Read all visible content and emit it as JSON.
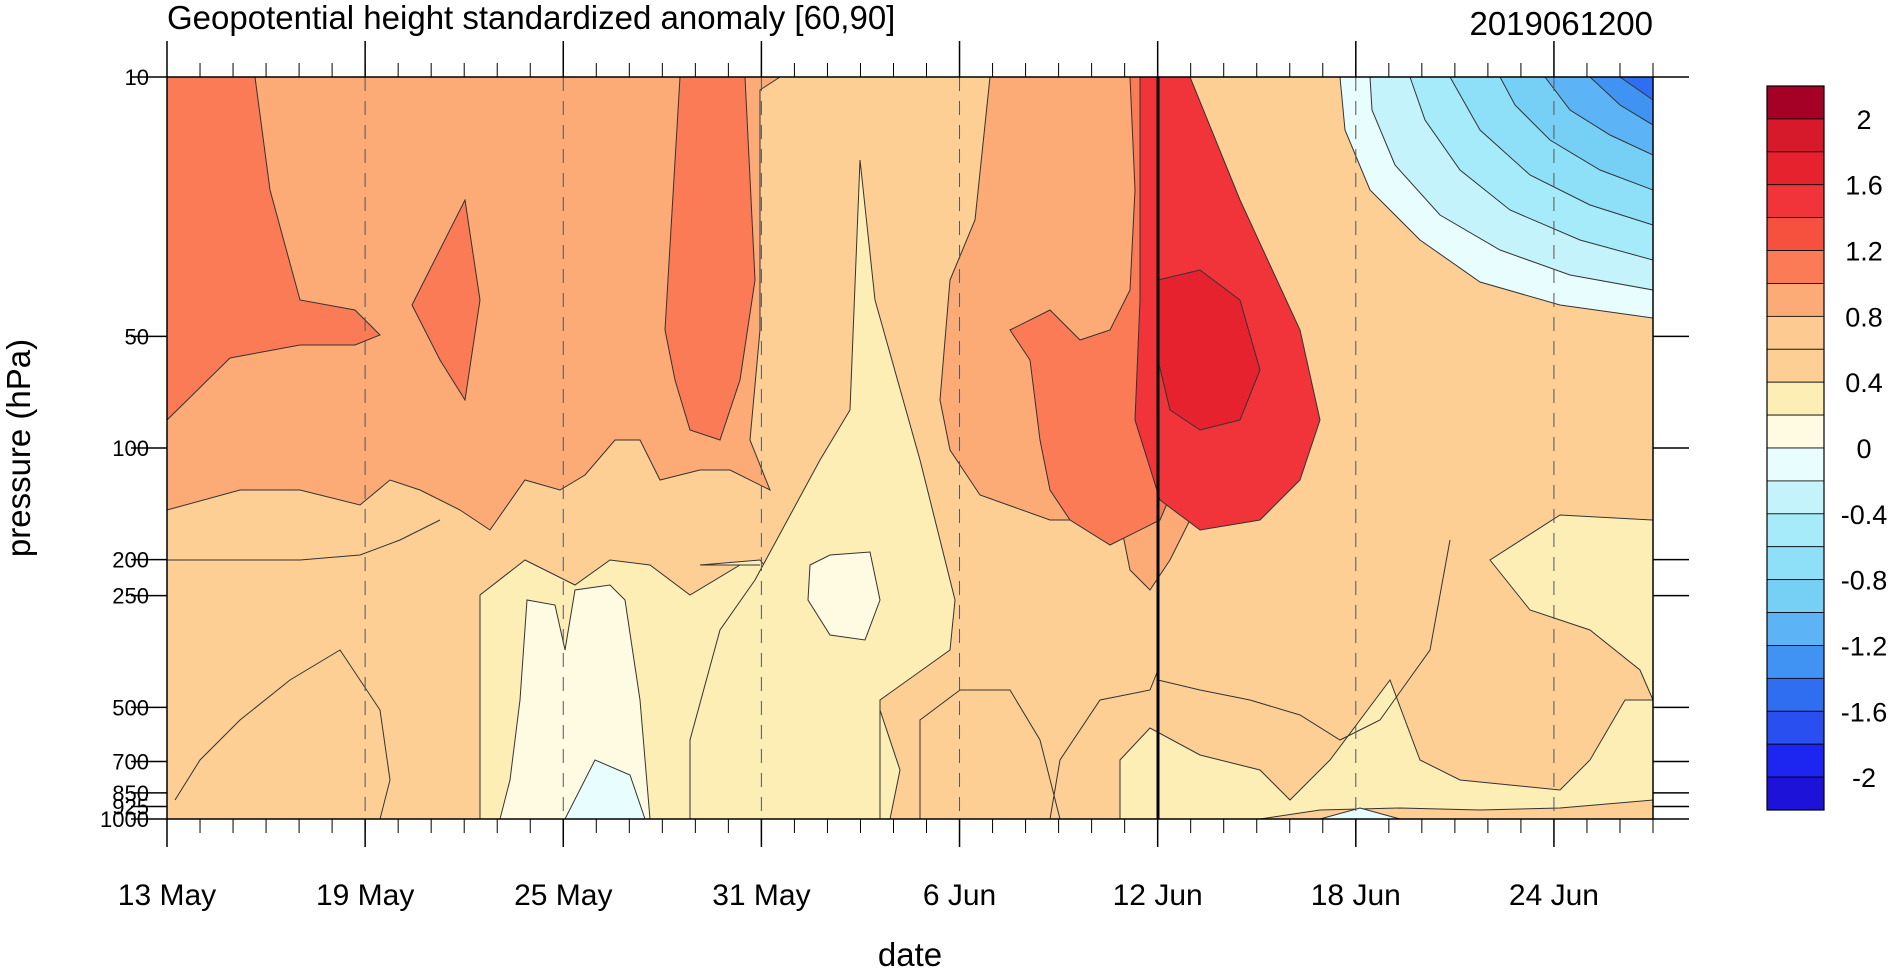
{
  "chart_data": {
    "type": "heatmap",
    "title": "Geopotential height standardized anomaly [60,90]",
    "subtitle": "2019061200",
    "xlabel": "date",
    "ylabel": "pressure (hPa)",
    "x": {
      "start_date": "2019-05-13",
      "end_date": "2019-06-27",
      "tick_labels": [
        "13 May",
        "19 May",
        "25 May",
        "31 May",
        "6 Jun",
        "12 Jun",
        "18 Jun",
        "24 Jun"
      ],
      "tick_dates": [
        "2019-05-13",
        "2019-05-19",
        "2019-05-25",
        "2019-05-31",
        "2019-06-06",
        "2019-06-12",
        "2019-06-18",
        "2019-06-24"
      ]
    },
    "y": {
      "scale": "log",
      "ylim": [
        1000,
        10
      ],
      "tick_labels": [
        "10",
        "50",
        "100",
        "200",
        "250",
        "500",
        "700",
        "850",
        "925",
        "1000"
      ],
      "tick_values": [
        10,
        50,
        100,
        200,
        250,
        500,
        700,
        850,
        925,
        1000
      ]
    },
    "marker_line_date": "2019-06-12",
    "colorbar": {
      "labels": [
        "2",
        "1.6",
        "1.2",
        "0.8",
        "0.4",
        "0",
        "-0.4",
        "-0.8",
        "-1.2",
        "-1.6",
        "-2"
      ],
      "levels": [
        2.2,
        2.0,
        1.8,
        1.6,
        1.4,
        1.2,
        1.0,
        0.8,
        0.6,
        0.4,
        0.2,
        0.0,
        -0.2,
        -0.4,
        -0.6,
        -0.8,
        -1.0,
        -1.2,
        -1.4,
        -1.6,
        -1.8,
        -2.0,
        -2.2
      ],
      "colors": [
        "#a50026",
        "#d7192c",
        "#e6222f",
        "#f0343a",
        "#f5513e",
        "#fa7b56",
        "#fcaa76",
        "#fdcb91",
        "#fdcf95",
        "#fdeeb5",
        "#fffbe2",
        "#e8fdfd",
        "#c4f3fb",
        "#a6ebfa",
        "#8ee0f8",
        "#76d0f6",
        "#5cb4f6",
        "#4093f3",
        "#2f6ef0",
        "#2a4ff1",
        "#1d26f0",
        "#1d13d8"
      ]
    },
    "pressure_levels": [
      10,
      50,
      100,
      200,
      250,
      500,
      700,
      1000
    ],
    "anomaly_grid_sample": [
      {
        "date": "2019-05-13",
        "values": [
          1.1,
          1.1,
          0.8,
          0.5,
          0.5,
          0.5,
          0.4,
          0.4
        ]
      },
      {
        "date": "2019-05-22",
        "values": [
          0.9,
          1.1,
          0.9,
          0.5,
          0.5,
          0.4,
          0.4,
          0.4
        ]
      },
      {
        "date": "2019-05-26",
        "values": [
          0.9,
          0.9,
          0.6,
          0.3,
          0.2,
          0.1,
          0.1,
          -0.1
        ]
      },
      {
        "date": "2019-05-30",
        "values": [
          1.1,
          1.2,
          0.9,
          0.6,
          0.5,
          0.4,
          0.4,
          0.4
        ]
      },
      {
        "date": "2019-06-03",
        "values": [
          0.6,
          0.6,
          0.3,
          0.1,
          0.1,
          0.3,
          0.3,
          0.3
        ]
      },
      {
        "date": "2019-06-09",
        "values": [
          0.9,
          1.1,
          0.8,
          0.6,
          0.5,
          0.5,
          0.5,
          0.4
        ]
      },
      {
        "date": "2019-06-13",
        "values": [
          1.3,
          1.5,
          1.5,
          0.8,
          0.6,
          0.4,
          0.3,
          0.2
        ]
      },
      {
        "date": "2019-06-16",
        "values": [
          0.3,
          1.1,
          1.3,
          0.8,
          0.6,
          0.5,
          0.3,
          0.2
        ]
      },
      {
        "date": "2019-06-20",
        "values": [
          -0.4,
          0.2,
          0.6,
          0.6,
          0.5,
          0.6,
          0.3,
          0.1
        ]
      },
      {
        "date": "2019-06-26",
        "values": [
          -1.8,
          -0.2,
          0.4,
          0.4,
          0.3,
          0.4,
          0.3,
          0.2
        ]
      }
    ]
  }
}
